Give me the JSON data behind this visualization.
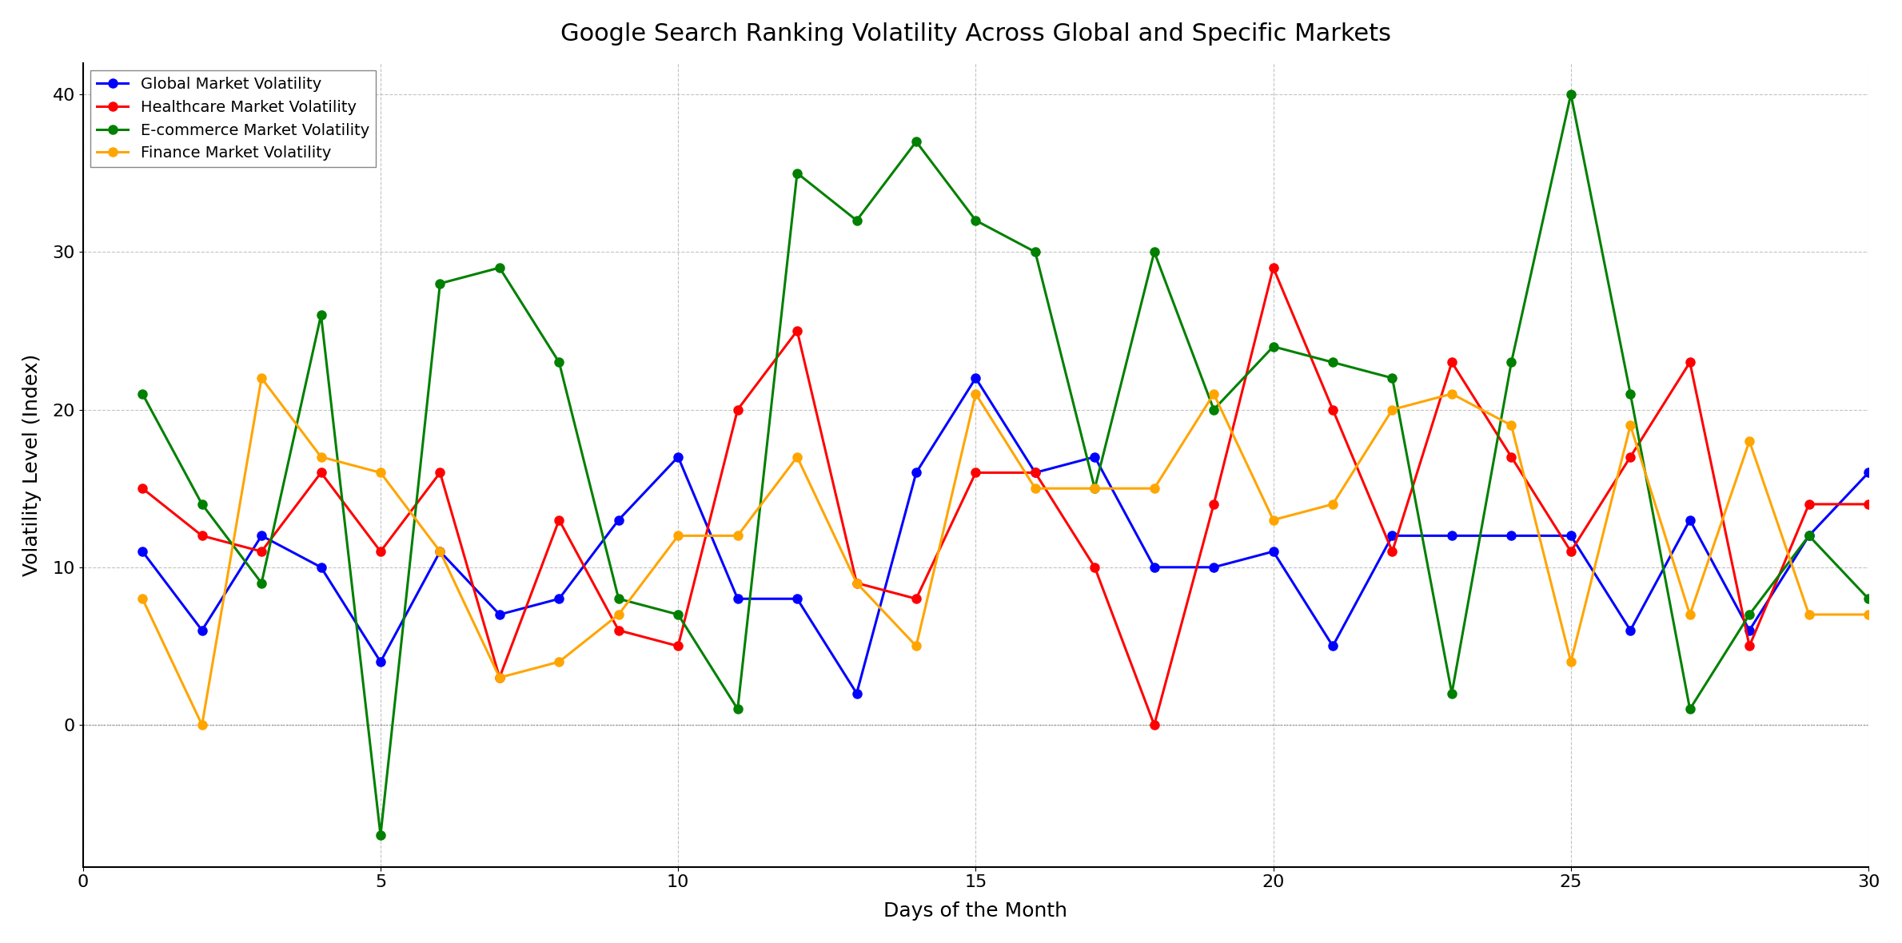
{
  "title": "Google Search Ranking Volatility Across Global and Specific Markets",
  "xlabel": "Days of the Month",
  "ylabel": "Volatility Level (Index)",
  "days": [
    1,
    2,
    3,
    4,
    5,
    6,
    7,
    8,
    9,
    10,
    11,
    12,
    13,
    14,
    15,
    16,
    17,
    18,
    19,
    20,
    21,
    22,
    23,
    24,
    25,
    26,
    27,
    28,
    29,
    30
  ],
  "global": [
    11,
    6,
    12,
    10,
    4,
    11,
    7,
    8,
    13,
    17,
    8,
    8,
    2,
    16,
    22,
    16,
    17,
    10,
    10,
    11,
    5,
    12,
    12,
    12,
    12,
    6,
    13,
    6,
    12,
    16
  ],
  "healthcare": [
    15,
    12,
    11,
    16,
    11,
    16,
    3,
    13,
    6,
    5,
    20,
    25,
    9,
    8,
    16,
    16,
    10,
    0,
    14,
    29,
    20,
    11,
    23,
    17,
    11,
    17,
    23,
    5,
    14,
    14
  ],
  "ecommerce": [
    21,
    14,
    9,
    26,
    -7,
    28,
    29,
    23,
    8,
    7,
    1,
    35,
    32,
    37,
    32,
    30,
    15,
    30,
    20,
    24,
    23,
    22,
    2,
    23,
    40,
    21,
    1,
    7,
    12,
    8
  ],
  "finance": [
    8,
    0,
    22,
    17,
    16,
    11,
    3,
    4,
    7,
    12,
    12,
    17,
    9,
    5,
    21,
    15,
    15,
    15,
    21,
    13,
    14,
    20,
    21,
    19,
    4,
    19,
    7,
    18,
    7,
    7
  ],
  "series": [
    {
      "label": "Global Market Volatility",
      "color": "#0000FF",
      "key": "global"
    },
    {
      "label": "Healthcare Market Volatility",
      "color": "#FF0000",
      "key": "healthcare"
    },
    {
      "label": "E-commerce Market Volatility",
      "color": "#008000",
      "key": "ecommerce"
    },
    {
      "label": "Finance Market Volatility",
      "color": "#FFA500",
      "key": "finance"
    }
  ],
  "ylim": [
    -9,
    42
  ],
  "xlim": [
    0,
    30
  ],
  "yticks": [
    0,
    10,
    20,
    30,
    40
  ],
  "xticks": [
    0,
    5,
    10,
    15,
    20,
    25,
    30
  ],
  "title_fontsize": 22,
  "label_fontsize": 18,
  "tick_fontsize": 16,
  "legend_fontsize": 14,
  "linewidth": 2.2,
  "markersize": 8,
  "background_color": "#FFFFFF",
  "grid_color": "#AAAAAA",
  "grid_style": "--"
}
